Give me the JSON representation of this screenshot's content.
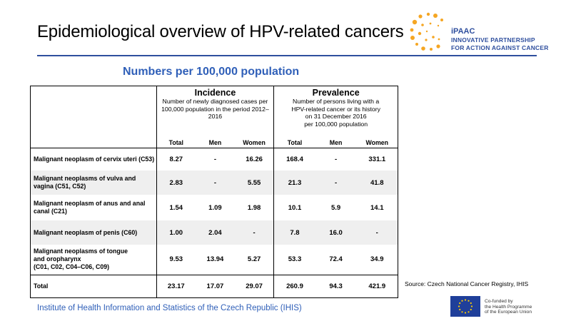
{
  "header": {
    "title": "Epidemiological overview of HPV-related cancers"
  },
  "logo": {
    "name": "iPAAC",
    "line1": "INNOVATIVE PARTNERSHIP",
    "line2": "FOR ACTION AGAINST CANCER",
    "accent_color": "#f5a623",
    "text_color": "#2f4f9e"
  },
  "subtitle": "Numbers per 100,000 population",
  "table": {
    "incidence": {
      "title": "Incidence",
      "description": "Number of newly diagnosed cases per 100,000 population in the period 2012–2016"
    },
    "prevalence": {
      "title": "Prevalence",
      "description_line1": "Number of persons living with a",
      "description_line2": "HPV-related cancer or its history",
      "description_line3": "on 31 December 2016",
      "description_line4": "per 100,000 population"
    },
    "columns": [
      "Total",
      "Men",
      "Women",
      "Total",
      "Men",
      "Women"
    ],
    "rows": [
      {
        "label": "Malignant neoplasm of cervix uteri (C53)",
        "values": [
          "8.27",
          "-",
          "16.26",
          "168.4",
          "-",
          "331.1"
        ]
      },
      {
        "label": "Malignant neoplasms of vulva and vagina  (C51, C52)",
        "values": [
          "2.83",
          "-",
          "5.55",
          "21.3",
          "-",
          "41.8"
        ]
      },
      {
        "label": "Malignant neoplasm of anus and anal canal  (C21)",
        "values": [
          "1.54",
          "1.09",
          "1.98",
          "10.1",
          "5.9",
          "14.1"
        ]
      },
      {
        "label": "Malignant neoplasm of penis (C60)",
        "values": [
          "1.00",
          "2.04",
          "-",
          "7.8",
          "16.0",
          "-"
        ]
      },
      {
        "label_line1": "Malignant neoplasms of tongue",
        "label_line2": "and oropharynx",
        "label_line3": "(C01, C02, C04–C06, C09)",
        "values": [
          "9.53",
          "13.94",
          "5.27",
          "53.3",
          "72.4",
          "34.9"
        ]
      }
    ],
    "total": {
      "label": "Total",
      "values": [
        "23.17",
        "17.07",
        "29.07",
        "260.9",
        "94.3",
        "421.9"
      ]
    }
  },
  "source": "Source: Czech National Cancer Registry, IHIS",
  "footer": {
    "organization": "Institute of Health Information and Statistics of the Czech Republic (IHIS)",
    "eu_line1": "Co-funded by",
    "eu_line2": "the Health Programme",
    "eu_line3": "of the European Union",
    "eu_blue": "#1f3f9a",
    "eu_star": "#ffcc00"
  }
}
